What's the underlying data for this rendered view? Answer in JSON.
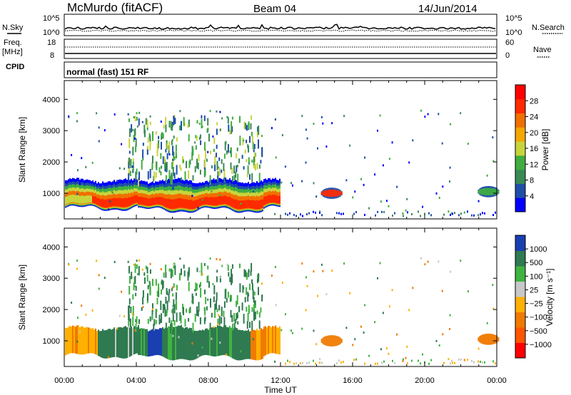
{
  "header": {
    "station": "McMurdo (fitACF)",
    "beam": "Beam 04",
    "date": "14/Jun/2014"
  },
  "noise_panel": {
    "left_label": "N.Sky",
    "right_label": "N.Search",
    "top_tick_left": "10^5",
    "bottom_tick_left": "10^0",
    "top_tick_right": "10^5",
    "bottom_tick_right": "10^0"
  },
  "freq_panel": {
    "left_label_line1": "Freq.",
    "left_label_line2": "[MHz]",
    "right_label": "Nave",
    "left_ticks": [
      "18",
      "8"
    ],
    "right_ticks": [
      "60",
      "0"
    ]
  },
  "cpid_panel": {
    "label": "CPID",
    "program": "normal (fast) 151 RF"
  },
  "power_panel": {
    "ylabel": "Slant Range [km]",
    "yticks": [
      "4000",
      "3000",
      "2000",
      "1000"
    ],
    "colorbar_label": "Power [dB]",
    "colorbar_ticks": [
      "28",
      "24",
      "20",
      "16",
      "12",
      "8",
      "4"
    ]
  },
  "velocity_panel": {
    "ylabel": "Slant Range [km]",
    "yticks": [
      "4000",
      "3000",
      "2000",
      "1000"
    ],
    "colorbar_label": "Velocity [m s⁻¹]",
    "colorbar_ticks": [
      "1000",
      "500",
      "100",
      "25",
      "−25",
      "−100",
      "−500",
      "−1000"
    ]
  },
  "xaxis": {
    "label": "Time UT",
    "ticks": [
      "00:00",
      "04:00",
      "08:00",
      "12:00",
      "16:00",
      "20:00",
      "00:00"
    ]
  },
  "colors": {
    "power_scale": [
      "#0000ff",
      "#1f4ea8",
      "#3a8a56",
      "#3fae3f",
      "#c8d43c",
      "#f2a800",
      "#f07000",
      "#ff2a00",
      "#ff0000"
    ],
    "velocity_scale": [
      "#ff0000",
      "#ff5500",
      "#f07a00",
      "#ffb000",
      "#c8c8c8",
      "#40b440",
      "#2f7a50",
      "#1a3fb0"
    ]
  },
  "chart_data": {
    "type": "heatmap",
    "title": "McMurdo (fitACF) Beam 04 14/Jun/2014",
    "xlabel": "Time UT",
    "ylabel": "Slant Range [km]",
    "x_range_hours": [
      0,
      24
    ],
    "y_range_km": [
      180,
      4600
    ],
    "power_colorbar_range_db": [
      0,
      30
    ],
    "velocity_colorbar_range_ms": [
      -1000,
      1000
    ],
    "main_echo_band": {
      "time_start_h": 0,
      "time_end_h": 12.0,
      "range_low_km": 400,
      "range_high_km": 1450,
      "peak_power_db": 28
    },
    "patches": [
      {
        "time_h": 14.8,
        "range_km": 1000,
        "power_db": 26,
        "velocity_ms": -100
      },
      {
        "time_h": 23.5,
        "range_km": 1050,
        "power_db": 12,
        "velocity_ms": -100
      }
    ]
  }
}
